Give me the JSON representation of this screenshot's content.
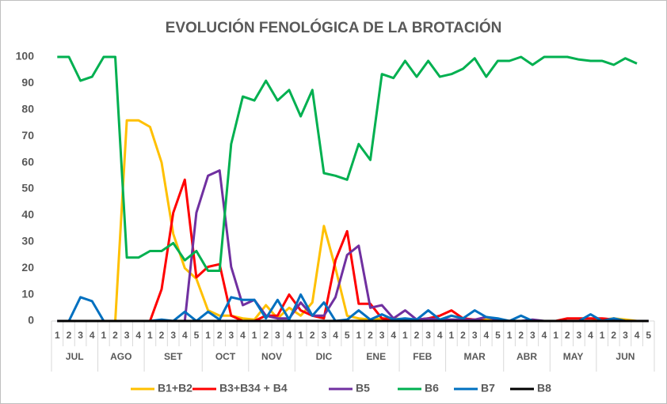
{
  "chart_data": {
    "type": "line",
    "title": "EVOLUCIÓN FENOLÓGICA DE LA BROTACIÓN",
    "groups": [
      {
        "label": "JUL",
        "categories": [
          "1",
          "2",
          "3",
          "4"
        ]
      },
      {
        "label": "AGO",
        "categories": [
          "1",
          "2",
          "3",
          "4"
        ]
      },
      {
        "label": "SET",
        "categories": [
          "1",
          "2",
          "3",
          "4",
          "5"
        ]
      },
      {
        "label": "OCT",
        "categories": [
          "1",
          "2",
          "3",
          "4"
        ]
      },
      {
        "label": "NOV",
        "categories": [
          "1",
          "2",
          "3",
          "4"
        ]
      },
      {
        "label": "DIC",
        "categories": [
          "1",
          "2",
          "3",
          "4",
          "5"
        ]
      },
      {
        "label": "ENE",
        "categories": [
          "1",
          "2",
          "3",
          "4"
        ]
      },
      {
        "label": "FEB",
        "categories": [
          "1",
          "2",
          "3",
          "4"
        ]
      },
      {
        "label": "MAR",
        "categories": [
          "1",
          "2",
          "3",
          "4",
          "5"
        ]
      },
      {
        "label": "ABR",
        "categories": [
          "1",
          "2",
          "3",
          "4"
        ]
      },
      {
        "label": "MAY",
        "categories": [
          "1",
          "2",
          "3",
          "4"
        ]
      },
      {
        "label": "JUN",
        "categories": [
          "1",
          "2",
          "3",
          "4",
          "5"
        ]
      }
    ],
    "ylim": [
      0,
      100
    ],
    "yticks": [
      0,
      10,
      20,
      30,
      40,
      50,
      60,
      70,
      80,
      90,
      100
    ],
    "legend": "bottom",
    "series": [
      {
        "name": "B1+B2",
        "color": "#ffc000",
        "values": [
          0,
          0,
          0,
          0,
          0,
          0,
          76,
          76,
          73.5,
          60,
          33,
          20,
          16,
          4,
          2,
          2,
          1,
          0.5,
          6,
          1,
          5,
          2,
          7,
          36,
          20,
          2,
          1,
          0.5,
          1,
          1,
          0.5,
          0.5,
          1,
          0.5,
          2,
          1,
          0.5,
          0.5,
          0.5,
          0,
          0,
          0,
          0,
          0,
          0,
          0,
          0,
          0.5,
          1,
          0.5,
          0,
          0
        ]
      },
      {
        "name": "B3+B34 + B4",
        "color": "#ff0000",
        "values": [
          0,
          0,
          0,
          0,
          0,
          0,
          0,
          0,
          0,
          12,
          41,
          53.5,
          16.5,
          20.5,
          21.5,
          2,
          0,
          0,
          2,
          2,
          10,
          4,
          2,
          1,
          23,
          34,
          6.5,
          6.5,
          1,
          0.5,
          0.5,
          0.5,
          1,
          2,
          4,
          1,
          0.5,
          0,
          0,
          0,
          0,
          0,
          0,
          0,
          1,
          1,
          1,
          1,
          0.5,
          0,
          0,
          0
        ]
      },
      {
        "name": "B5",
        "color": "#7030a0",
        "values": [
          0,
          0,
          0,
          0,
          0,
          0,
          0,
          0,
          0,
          0,
          0,
          0,
          41,
          55,
          57,
          20.5,
          6,
          8,
          2,
          1,
          1,
          7,
          2,
          2,
          9,
          25,
          28.5,
          5,
          6,
          1,
          4,
          0.5,
          1,
          0.5,
          0.5,
          0.5,
          0.5,
          1.5,
          0.5,
          0,
          0,
          0.5,
          0,
          0,
          0,
          0,
          0,
          0,
          0,
          0,
          0,
          0
        ]
      },
      {
        "name": "B6",
        "color": "#00b050",
        "values": [
          100,
          100,
          91,
          92.5,
          100,
          100,
          24,
          24,
          26.5,
          26.5,
          29.5,
          23,
          26.5,
          19,
          19,
          67,
          85,
          83.5,
          91,
          83.5,
          87.5,
          77.5,
          87.5,
          56,
          55,
          53.5,
          67,
          61,
          93.5,
          92,
          98.5,
          92.5,
          98.5,
          92.5,
          93.5,
          95.5,
          99.5,
          92.5,
          98.5,
          98.5,
          100,
          97,
          100,
          100,
          100,
          99,
          98.5,
          98.5,
          97,
          99.5,
          97.5,
          null
        ]
      },
      {
        "name": "B7",
        "color": "#0070c0",
        "values": [
          0,
          0,
          9,
          7.5,
          0,
          0,
          0,
          0,
          0,
          0.5,
          0,
          3.5,
          0,
          3.5,
          0.5,
          9,
          8,
          8,
          1,
          8,
          0.5,
          10,
          2,
          7,
          0,
          0.5,
          4,
          0.5,
          2.5,
          0.5,
          1,
          0.5,
          4,
          0.5,
          2,
          1,
          4,
          1.5,
          1,
          0,
          2,
          0,
          0,
          0,
          0,
          0,
          2.5,
          0,
          1,
          0,
          0,
          0
        ]
      },
      {
        "name": "B8",
        "color": "#000000",
        "values": [
          0,
          0,
          0,
          0,
          0,
          0,
          0,
          0,
          0,
          0,
          0,
          0,
          0,
          0,
          0,
          0,
          0,
          0,
          0,
          0,
          0,
          0,
          0,
          0,
          0,
          0,
          0,
          0,
          0,
          0,
          0,
          0,
          0,
          0,
          0,
          0,
          0,
          0,
          0,
          0,
          0,
          0,
          0,
          0,
          0,
          0,
          0,
          0,
          0,
          0,
          0,
          0
        ]
      }
    ]
  }
}
